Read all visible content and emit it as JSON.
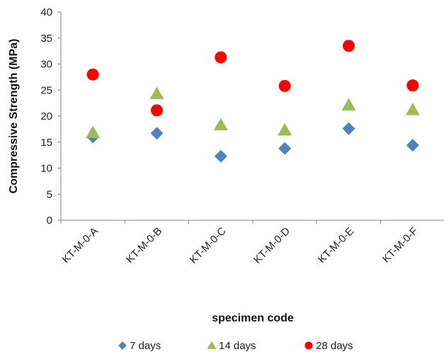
{
  "chart_data": {
    "type": "scatter",
    "categories": [
      "KT-M-0-A",
      "KT-M-0-B",
      "KT-M-0-C",
      "KT-M-0-D",
      "KT-M-0-E",
      "KT-M-0-F"
    ],
    "xlabel": "specimen code",
    "ylabel": "Compressive Strength (MPa)",
    "ylim": [
      0,
      40
    ],
    "yticks": [
      0,
      5,
      10,
      15,
      20,
      25,
      30,
      35,
      40
    ],
    "grid": false,
    "legend_position": "bottom",
    "series": [
      {
        "name": "7 days",
        "marker": "diamond",
        "color": "#4f81bd",
        "values": [
          16.0,
          16.7,
          12.3,
          13.8,
          17.6,
          14.4
        ]
      },
      {
        "name": "14 days",
        "marker": "triangle",
        "color": "#9bbb59",
        "values": [
          16.8,
          24.3,
          18.3,
          17.3,
          22.1,
          21.2
        ]
      },
      {
        "name": "28 days",
        "marker": "circle",
        "color": "#ff0000",
        "values": [
          28.0,
          21.1,
          31.3,
          25.8,
          33.5,
          25.9
        ]
      }
    ]
  }
}
